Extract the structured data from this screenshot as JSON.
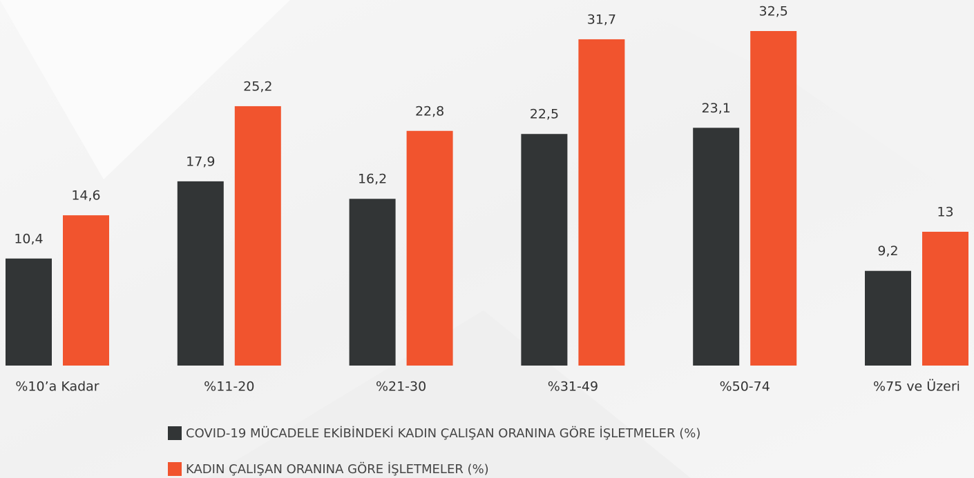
{
  "chart_data": {
    "type": "bar",
    "categories": [
      "%10’a Kadar",
      "%11-20",
      "%21-30",
      "%31-49",
      "%50-74",
      "%75 ve Üzeri"
    ],
    "series": [
      {
        "name": "COVID-19 MÜCADELE EKİBİNDEKİ KADIN ÇALIŞAN ORANINA GÖRE İŞLETMELER (%)",
        "color": "#323536",
        "values": [
          10.4,
          17.9,
          16.2,
          22.5,
          23.1,
          9.2
        ],
        "value_labels": [
          "10,4",
          "17,9",
          "16,2",
          "22,5",
          "23,1",
          "9,2"
        ]
      },
      {
        "name": "KADIN ÇALIŞAN ORANINA GÖRE İŞLETMELER (%)",
        "color": "#f1542e",
        "values": [
          14.6,
          25.2,
          22.8,
          31.7,
          32.5,
          13
        ],
        "value_labels": [
          "14,6",
          "25,2",
          "22,8",
          "31,7",
          "32,5",
          "13"
        ]
      }
    ],
    "legend": "bottom"
  }
}
